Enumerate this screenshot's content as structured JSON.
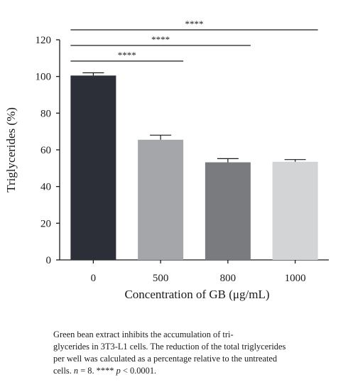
{
  "chart_data": {
    "type": "bar",
    "categories": [
      "0",
      "500",
      "800",
      "1000"
    ],
    "values": [
      100.5,
      65.5,
      53.2,
      53.5
    ],
    "errors": [
      1.5,
      2.5,
      2.0,
      1.2
    ],
    "colors": [
      "#2c2f37",
      "#a5a6aa",
      "#7a7b7f",
      "#d3d4d6"
    ],
    "xlabel": "Concentration of GB (μg/mL)",
    "ylabel": "Triglycerides (%)",
    "ylim": [
      0,
      120
    ],
    "yticks": [
      "0",
      "20",
      "40",
      "60",
      "80",
      "100",
      "120"
    ],
    "grid": false,
    "significance": [
      {
        "from": "0",
        "to": "500",
        "label": "****"
      },
      {
        "from": "0",
        "to": "800",
        "label": "****"
      },
      {
        "from": "0",
        "to": "1000",
        "label": "****"
      }
    ]
  },
  "caption": {
    "line1": "Green bean extract inhibits the accumulation of tri-",
    "line2": "glycerides in 3T3-L1 cells. The reduction of the total triglycerides",
    "line3": "per well was calculated as a percentage relative to the untreated",
    "line4_a": "cells. ",
    "line4_n": "n",
    "line4_b": " = 8. **** ",
    "line4_p": "p",
    "line4_c": " < 0.0001."
  }
}
